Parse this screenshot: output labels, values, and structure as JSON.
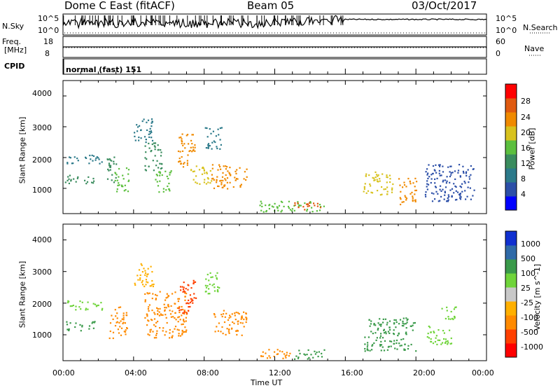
{
  "header": {
    "station": "Dome C East (fitACF)",
    "beam": "Beam 05",
    "date": "03/Oct/2017"
  },
  "strip_sky": {
    "label": "N.Sky",
    "right_label": "N.Search",
    "left_ticks": [
      "10^5",
      "10^0"
    ],
    "right_ticks": [
      "10^5",
      "10^0"
    ]
  },
  "strip_freq": {
    "label_top": "Freq.",
    "label_unit": "[MHz]",
    "right_label": "Nave",
    "left_ticks": [
      "18",
      "8"
    ],
    "right_ticks": [
      "60",
      "0"
    ]
  },
  "cpid": {
    "label": "CPID",
    "value": "normal (fast) 151"
  },
  "colors": {
    "power": [
      "#0000ff",
      "#2c4fa8",
      "#2c7a8a",
      "#3a8c5e",
      "#5cbf3e",
      "#d8c21e",
      "#f08a00",
      "#e05a10",
      "#ff0000"
    ],
    "velocity": [
      "#ff0000",
      "#ff4000",
      "#ff8a00",
      "#ffb000",
      "#c8c8c8",
      "#6fd43a",
      "#3a9a4a",
      "#2f6aa8",
      "#1030d0"
    ]
  },
  "chart_data": [
    {
      "type": "heatmap",
      "title": "Power",
      "xlabel": "Time UT",
      "ylabel": "Slant Range [km]",
      "x_range": [
        "00:00",
        "24:00"
      ],
      "x_ticks": [
        "00:00",
        "04:00",
        "08:00",
        "12:00",
        "16:00",
        "20:00",
        "00:00"
      ],
      "ylim": [
        180,
        4500
      ],
      "y_ticks": [
        1000,
        2000,
        3000,
        4000
      ],
      "colorbar": {
        "label": "Power [dB]",
        "ticks": [
          "4",
          "8",
          "12",
          "16",
          "20",
          "24",
          "28"
        ],
        "range": [
          0,
          32
        ]
      },
      "regions": [
        {
          "t0": 0.2,
          "t1": 2.2,
          "r0": 1800,
          "r1": 2100,
          "value": 8
        },
        {
          "t0": 0.1,
          "t1": 1.8,
          "r0": 1150,
          "r1": 1450,
          "value": 14
        },
        {
          "t0": 2.4,
          "t1": 3.0,
          "r0": 1200,
          "r1": 2100,
          "value": 12
        },
        {
          "t0": 2.9,
          "t1": 3.7,
          "r0": 900,
          "r1": 1700,
          "value": 16
        },
        {
          "t0": 4.0,
          "t1": 5.1,
          "r0": 2500,
          "r1": 3300,
          "value": 8
        },
        {
          "t0": 4.6,
          "t1": 5.6,
          "r0": 1600,
          "r1": 2500,
          "value": 12
        },
        {
          "t0": 5.2,
          "t1": 6.2,
          "r0": 900,
          "r1": 1600,
          "value": 16
        },
        {
          "t0": 6.5,
          "t1": 7.5,
          "r0": 1700,
          "r1": 2800,
          "value": 22
        },
        {
          "t0": 7.2,
          "t1": 8.4,
          "r0": 1150,
          "r1": 1750,
          "value": 18
        },
        {
          "t0": 8.0,
          "t1": 9.0,
          "r0": 2300,
          "r1": 3000,
          "value": 8
        },
        {
          "t0": 8.4,
          "t1": 10.4,
          "r0": 1000,
          "r1": 1800,
          "value": 24
        },
        {
          "t0": 11.1,
          "t1": 14.8,
          "r0": 250,
          "r1": 600,
          "value": 16
        },
        {
          "t0": 13.0,
          "t1": 14.6,
          "r0": 300,
          "r1": 560,
          "value": 26
        },
        {
          "t0": 17.0,
          "t1": 18.7,
          "r0": 800,
          "r1": 1550,
          "value": 18
        },
        {
          "t0": 19.0,
          "t1": 20.0,
          "r0": 500,
          "r1": 1400,
          "value": 24
        },
        {
          "t0": 20.5,
          "t1": 23.3,
          "r0": 600,
          "r1": 1800,
          "value": 6
        }
      ]
    },
    {
      "type": "heatmap",
      "title": "Velocity",
      "xlabel": "Time UT",
      "ylabel": "Slant Range [km]",
      "x_range": [
        "00:00",
        "24:00"
      ],
      "x_ticks": [
        "00:00",
        "04:00",
        "08:00",
        "12:00",
        "16:00",
        "20:00",
        "00:00"
      ],
      "ylim": [
        180,
        4500
      ],
      "y_ticks": [
        1000,
        2000,
        3000,
        4000
      ],
      "colorbar": {
        "label": "Velocity [m s^-1]",
        "ticks": [
          "-1000",
          "-500",
          "-100",
          "-25",
          "25",
          "100",
          "500",
          "1000"
        ]
      },
      "regions": [
        {
          "t0": 0.2,
          "t1": 2.2,
          "r0": 1800,
          "r1": 2100,
          "value": 25
        },
        {
          "t0": 0.1,
          "t1": 1.8,
          "r0": 1150,
          "r1": 1450,
          "value": 100
        },
        {
          "t0": 2.6,
          "t1": 3.6,
          "r0": 900,
          "r1": 1900,
          "value": -100
        },
        {
          "t0": 4.0,
          "t1": 5.1,
          "r0": 2500,
          "r1": 3300,
          "value": -25
        },
        {
          "t0": 4.6,
          "t1": 7.0,
          "r0": 900,
          "r1": 2400,
          "value": -100
        },
        {
          "t0": 6.5,
          "t1": 7.5,
          "r0": 1700,
          "r1": 2800,
          "value": -500
        },
        {
          "t0": 8.0,
          "t1": 9.0,
          "r0": 2300,
          "r1": 3000,
          "value": 25
        },
        {
          "t0": 8.4,
          "t1": 10.4,
          "r0": 1000,
          "r1": 1800,
          "value": -100
        },
        {
          "t0": 11.1,
          "t1": 13.0,
          "r0": 250,
          "r1": 560,
          "value": -100
        },
        {
          "t0": 13.0,
          "t1": 14.8,
          "r0": 250,
          "r1": 560,
          "value": 100
        },
        {
          "t0": 17.0,
          "t1": 20.0,
          "r0": 500,
          "r1": 1550,
          "value": 100
        },
        {
          "t0": 20.5,
          "t1": 22.0,
          "r0": 700,
          "r1": 1300,
          "value": 25
        },
        {
          "t0": 21.4,
          "t1": 22.4,
          "r0": 1500,
          "r1": 1900,
          "value": 25
        }
      ]
    }
  ]
}
